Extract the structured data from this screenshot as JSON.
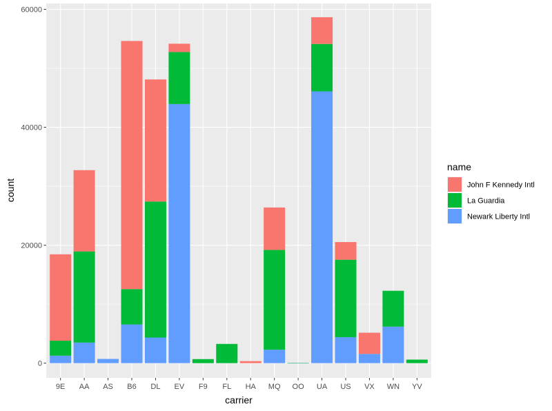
{
  "chart_data": {
    "type": "bar",
    "stacked": true,
    "categories": [
      "9E",
      "AA",
      "AS",
      "B6",
      "DL",
      "EV",
      "F9",
      "FL",
      "HA",
      "MQ",
      "OO",
      "UA",
      "US",
      "VX",
      "WN",
      "YV"
    ],
    "series": [
      {
        "name": "Newark Liberty Intl",
        "color": "#619CFF",
        "values": [
          1268,
          3487,
          714,
          6557,
          4342,
          43939,
          0,
          0,
          0,
          2276,
          6,
          46087,
          4405,
          1566,
          6188,
          0
        ]
      },
      {
        "name": "La Guardia",
        "color": "#00BA38",
        "values": [
          2541,
          15459,
          0,
          6002,
          23067,
          8826,
          685,
          3260,
          0,
          16928,
          26,
          8044,
          13136,
          0,
          6087,
          601
        ]
      },
      {
        "name": "John F Kennedy Intl",
        "color": "#F8766D",
        "values": [
          14651,
          13783,
          0,
          42076,
          20701,
          1408,
          0,
          0,
          342,
          7193,
          0,
          4534,
          2995,
          3596,
          0,
          0
        ]
      }
    ],
    "stack_order_bottom_to_top": [
      "Newark Liberty Intl",
      "La Guardia",
      "John F Kennedy Intl"
    ],
    "xlabel": "carrier",
    "ylabel": "count",
    "ylim": [
      -2500,
      61000
    ],
    "yticks": [
      0,
      20000,
      40000,
      60000
    ],
    "ytick_labels": [
      "0",
      "20000",
      "40000",
      "60000"
    ],
    "grid": true,
    "legend": {
      "title": "name",
      "position": "right",
      "entries": [
        "John F Kennedy Intl",
        "La Guardia",
        "Newark Liberty Intl"
      ]
    }
  }
}
